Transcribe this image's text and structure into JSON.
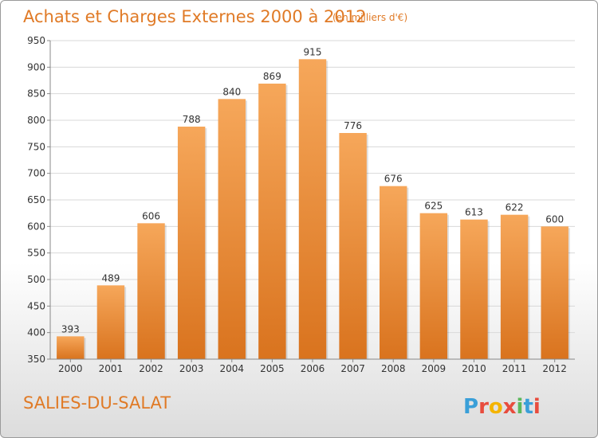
{
  "chart_data": {
    "type": "bar",
    "title": "Achats et Charges Externes 2000 à 2012",
    "subtitle": "(en milliers d'€)",
    "categories": [
      "2000",
      "2001",
      "2002",
      "2003",
      "2004",
      "2005",
      "2006",
      "2007",
      "2008",
      "2009",
      "2010",
      "2011",
      "2012"
    ],
    "values": [
      393,
      489,
      606,
      788,
      840,
      869,
      915,
      776,
      676,
      625,
      613,
      622,
      600
    ],
    "ylim": [
      350,
      950
    ],
    "yticks": [
      350,
      400,
      450,
      500,
      550,
      600,
      650,
      700,
      750,
      800,
      850,
      900,
      950
    ],
    "grid": true,
    "colors": {
      "bar_top": "#f6a75a",
      "bar_bottom": "#d9731e",
      "title": "#e07a26"
    }
  },
  "commune": "SALIES-DU-SALAT",
  "logo": {
    "letters": [
      "P",
      "r",
      "o",
      "x",
      "i",
      "t",
      "i"
    ],
    "colors": [
      "#3a9fd8",
      "#e84c3d",
      "#f4b400",
      "#e84c3d",
      "#5cb85c",
      "#3a9fd8",
      "#e84c3d"
    ]
  }
}
